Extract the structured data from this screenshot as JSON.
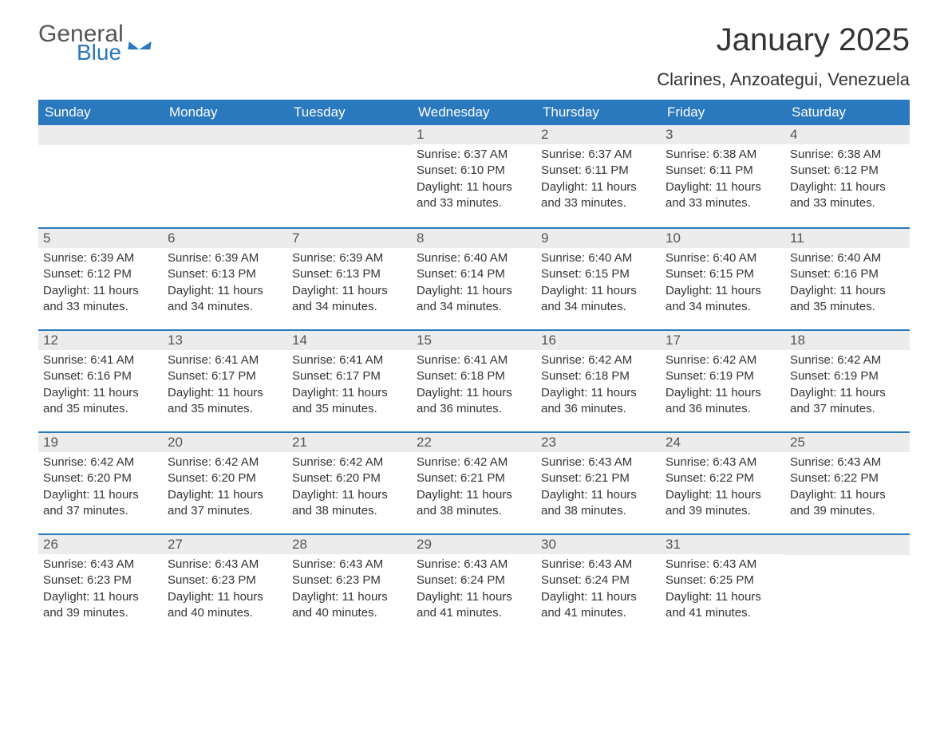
{
  "logo": {
    "text_general": "General",
    "text_blue": "Blue"
  },
  "title": "January 2025",
  "location": "Clarines, Anzoategui, Venezuela",
  "colors": {
    "primary": "#2a78bd",
    "header_text": "#ffffff",
    "daybar_bg": "#ececec",
    "body_text": "#333333",
    "muted_text": "#555555"
  },
  "typography": {
    "title_fontsize": 40,
    "location_fontsize": 22,
    "weekday_fontsize": 17,
    "body_fontsize": 15
  },
  "weekdays": [
    "Sunday",
    "Monday",
    "Tuesday",
    "Wednesday",
    "Thursday",
    "Friday",
    "Saturday"
  ],
  "weeks": [
    [
      {
        "day": "",
        "sunrise": "",
        "sunset": "",
        "daylight": ""
      },
      {
        "day": "",
        "sunrise": "",
        "sunset": "",
        "daylight": ""
      },
      {
        "day": "",
        "sunrise": "",
        "sunset": "",
        "daylight": ""
      },
      {
        "day": "1",
        "sunrise": "Sunrise: 6:37 AM",
        "sunset": "Sunset: 6:10 PM",
        "daylight": "Daylight: 11 hours and 33 minutes."
      },
      {
        "day": "2",
        "sunrise": "Sunrise: 6:37 AM",
        "sunset": "Sunset: 6:11 PM",
        "daylight": "Daylight: 11 hours and 33 minutes."
      },
      {
        "day": "3",
        "sunrise": "Sunrise: 6:38 AM",
        "sunset": "Sunset: 6:11 PM",
        "daylight": "Daylight: 11 hours and 33 minutes."
      },
      {
        "day": "4",
        "sunrise": "Sunrise: 6:38 AM",
        "sunset": "Sunset: 6:12 PM",
        "daylight": "Daylight: 11 hours and 33 minutes."
      }
    ],
    [
      {
        "day": "5",
        "sunrise": "Sunrise: 6:39 AM",
        "sunset": "Sunset: 6:12 PM",
        "daylight": "Daylight: 11 hours and 33 minutes."
      },
      {
        "day": "6",
        "sunrise": "Sunrise: 6:39 AM",
        "sunset": "Sunset: 6:13 PM",
        "daylight": "Daylight: 11 hours and 34 minutes."
      },
      {
        "day": "7",
        "sunrise": "Sunrise: 6:39 AM",
        "sunset": "Sunset: 6:13 PM",
        "daylight": "Daylight: 11 hours and 34 minutes."
      },
      {
        "day": "8",
        "sunrise": "Sunrise: 6:40 AM",
        "sunset": "Sunset: 6:14 PM",
        "daylight": "Daylight: 11 hours and 34 minutes."
      },
      {
        "day": "9",
        "sunrise": "Sunrise: 6:40 AM",
        "sunset": "Sunset: 6:15 PM",
        "daylight": "Daylight: 11 hours and 34 minutes."
      },
      {
        "day": "10",
        "sunrise": "Sunrise: 6:40 AM",
        "sunset": "Sunset: 6:15 PM",
        "daylight": "Daylight: 11 hours and 34 minutes."
      },
      {
        "day": "11",
        "sunrise": "Sunrise: 6:40 AM",
        "sunset": "Sunset: 6:16 PM",
        "daylight": "Daylight: 11 hours and 35 minutes."
      }
    ],
    [
      {
        "day": "12",
        "sunrise": "Sunrise: 6:41 AM",
        "sunset": "Sunset: 6:16 PM",
        "daylight": "Daylight: 11 hours and 35 minutes."
      },
      {
        "day": "13",
        "sunrise": "Sunrise: 6:41 AM",
        "sunset": "Sunset: 6:17 PM",
        "daylight": "Daylight: 11 hours and 35 minutes."
      },
      {
        "day": "14",
        "sunrise": "Sunrise: 6:41 AM",
        "sunset": "Sunset: 6:17 PM",
        "daylight": "Daylight: 11 hours and 35 minutes."
      },
      {
        "day": "15",
        "sunrise": "Sunrise: 6:41 AM",
        "sunset": "Sunset: 6:18 PM",
        "daylight": "Daylight: 11 hours and 36 minutes."
      },
      {
        "day": "16",
        "sunrise": "Sunrise: 6:42 AM",
        "sunset": "Sunset: 6:18 PM",
        "daylight": "Daylight: 11 hours and 36 minutes."
      },
      {
        "day": "17",
        "sunrise": "Sunrise: 6:42 AM",
        "sunset": "Sunset: 6:19 PM",
        "daylight": "Daylight: 11 hours and 36 minutes."
      },
      {
        "day": "18",
        "sunrise": "Sunrise: 6:42 AM",
        "sunset": "Sunset: 6:19 PM",
        "daylight": "Daylight: 11 hours and 37 minutes."
      }
    ],
    [
      {
        "day": "19",
        "sunrise": "Sunrise: 6:42 AM",
        "sunset": "Sunset: 6:20 PM",
        "daylight": "Daylight: 11 hours and 37 minutes."
      },
      {
        "day": "20",
        "sunrise": "Sunrise: 6:42 AM",
        "sunset": "Sunset: 6:20 PM",
        "daylight": "Daylight: 11 hours and 37 minutes."
      },
      {
        "day": "21",
        "sunrise": "Sunrise: 6:42 AM",
        "sunset": "Sunset: 6:20 PM",
        "daylight": "Daylight: 11 hours and 38 minutes."
      },
      {
        "day": "22",
        "sunrise": "Sunrise: 6:42 AM",
        "sunset": "Sunset: 6:21 PM",
        "daylight": "Daylight: 11 hours and 38 minutes."
      },
      {
        "day": "23",
        "sunrise": "Sunrise: 6:43 AM",
        "sunset": "Sunset: 6:21 PM",
        "daylight": "Daylight: 11 hours and 38 minutes."
      },
      {
        "day": "24",
        "sunrise": "Sunrise: 6:43 AM",
        "sunset": "Sunset: 6:22 PM",
        "daylight": "Daylight: 11 hours and 39 minutes."
      },
      {
        "day": "25",
        "sunrise": "Sunrise: 6:43 AM",
        "sunset": "Sunset: 6:22 PM",
        "daylight": "Daylight: 11 hours and 39 minutes."
      }
    ],
    [
      {
        "day": "26",
        "sunrise": "Sunrise: 6:43 AM",
        "sunset": "Sunset: 6:23 PM",
        "daylight": "Daylight: 11 hours and 39 minutes."
      },
      {
        "day": "27",
        "sunrise": "Sunrise: 6:43 AM",
        "sunset": "Sunset: 6:23 PM",
        "daylight": "Daylight: 11 hours and 40 minutes."
      },
      {
        "day": "28",
        "sunrise": "Sunrise: 6:43 AM",
        "sunset": "Sunset: 6:23 PM",
        "daylight": "Daylight: 11 hours and 40 minutes."
      },
      {
        "day": "29",
        "sunrise": "Sunrise: 6:43 AM",
        "sunset": "Sunset: 6:24 PM",
        "daylight": "Daylight: 11 hours and 41 minutes."
      },
      {
        "day": "30",
        "sunrise": "Sunrise: 6:43 AM",
        "sunset": "Sunset: 6:24 PM",
        "daylight": "Daylight: 11 hours and 41 minutes."
      },
      {
        "day": "31",
        "sunrise": "Sunrise: 6:43 AM",
        "sunset": "Sunset: 6:25 PM",
        "daylight": "Daylight: 11 hours and 41 minutes."
      },
      {
        "day": "",
        "sunrise": "",
        "sunset": "",
        "daylight": ""
      }
    ]
  ]
}
